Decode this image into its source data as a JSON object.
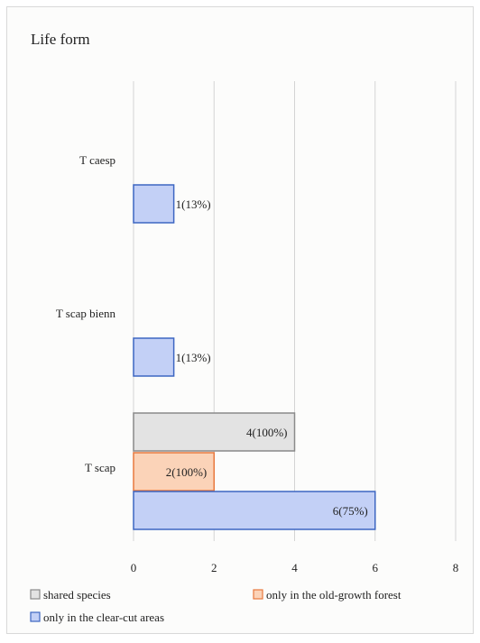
{
  "chart_data": {
    "type": "bar",
    "orientation": "horizontal",
    "title": "Life form",
    "categories": [
      "T caesp",
      "T scap bienn",
      "T scap"
    ],
    "series": [
      {
        "name": "shared species",
        "color": "#e3e3e3",
        "stroke": "#8a8a8a",
        "values": [
          null,
          null,
          4
        ],
        "labels": [
          "",
          "",
          "4(100%)"
        ]
      },
      {
        "name": "only in the old-growth forest",
        "color": "#fbd3b8",
        "stroke": "#e8793e",
        "values": [
          null,
          null,
          2
        ],
        "labels": [
          "",
          "",
          "2(100%)"
        ]
      },
      {
        "name": "only in the clear-cut areas",
        "color": "#c3d0f6",
        "stroke": "#3d66c2",
        "values": [
          1,
          1,
          6
        ],
        "labels": [
          "1(13%)",
          "1(13%)",
          "6(75%)"
        ]
      }
    ],
    "xlim": [
      0,
      8
    ],
    "xticks": [
      "0",
      "2",
      "4",
      "6",
      "8"
    ],
    "grid": true,
    "legend": "bottom"
  }
}
